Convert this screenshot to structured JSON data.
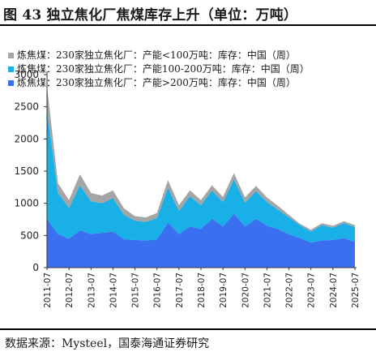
{
  "title": "图 43 独立焦化厂焦煤库存上升（单位：万吨）",
  "source": "数据来源：Mysteel，国泰海通证券研究",
  "chart_data": {
    "type": "area",
    "stacked": true,
    "title": "图 43 独立焦化厂焦煤库存上升（单位：万吨）",
    "ylim": [
      0,
      3000
    ],
    "y_ticks": [
      0,
      500,
      1000,
      1500,
      2000,
      2500,
      3000
    ],
    "x_ticks": [
      "2011-07",
      "2012-07",
      "2013-07",
      "2014-07",
      "2015-07",
      "2016-07",
      "2017-07",
      "2018-07",
      "2019-07",
      "2020-07",
      "2021-07",
      "2022-07",
      "2023-07",
      "2024-07",
      "2025-07"
    ],
    "x": [
      "2011-07",
      "2012-01",
      "2012-07",
      "2013-01",
      "2013-07",
      "2014-01",
      "2014-07",
      "2015-01",
      "2015-07",
      "2016-01",
      "2016-07",
      "2017-01",
      "2017-07",
      "2018-01",
      "2018-07",
      "2019-01",
      "2019-07",
      "2020-01",
      "2020-07",
      "2021-01",
      "2021-07",
      "2022-01",
      "2022-07",
      "2023-01",
      "2023-07",
      "2024-01",
      "2024-07",
      "2025-01",
      "2025-07"
    ],
    "legend_position": "top-left",
    "series": [
      {
        "name": "炼焦煤：230家独立焦化厂：产能>200万吨：库存：中国（周）",
        "color": "#3a6ff0",
        "values": [
          760,
          520,
          450,
          580,
          520,
          540,
          560,
          440,
          430,
          420,
          440,
          700,
          520,
          640,
          600,
          760,
          640,
          840,
          640,
          760,
          650,
          600,
          520,
          460,
          390,
          420,
          430,
          460,
          400
        ]
      },
      {
        "name": "炼焦煤：230家独立焦化厂：产能100-200万吨：库存：中国（周）",
        "color": "#19b0e8",
        "values": [
          1700,
          640,
          480,
          700,
          510,
          460,
          520,
          380,
          300,
          290,
          330,
          540,
          360,
          470,
          370,
          440,
          380,
          530,
          370,
          430,
          370,
          300,
          260,
          200,
          170,
          240,
          190,
          230,
          230
        ]
      },
      {
        "name": "炼焦煤：230家独立焦化厂：产能<100万吨：库存：中国（周）",
        "color": "#a5a5a5",
        "values": [
          360,
          150,
          120,
          170,
          130,
          120,
          120,
          100,
          70,
          70,
          80,
          120,
          90,
          90,
          80,
          80,
          80,
          100,
          80,
          80,
          70,
          60,
          40,
          20,
          30,
          30,
          30,
          30,
          30
        ]
      }
    ]
  },
  "legend_order": [
    2,
    1,
    0
  ]
}
